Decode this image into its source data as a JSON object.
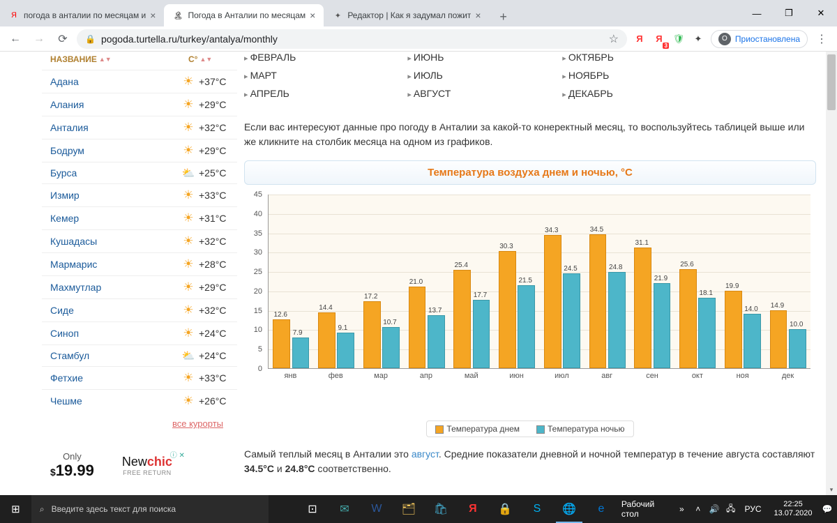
{
  "tabs": [
    {
      "favicon": "Я",
      "favicon_color": "#ff0000",
      "title": "погода в анталии по месяцам и"
    },
    {
      "favicon": "🏝",
      "favicon_color": "#000",
      "title": "Погода в Анталии по месяцам",
      "active": true
    },
    {
      "favicon": "✦",
      "favicon_color": "#555",
      "title": "Редактор | Как я задумал пожит"
    }
  ],
  "toolbar": {
    "url": "pogoda.turtella.ru/turkey/antalya/monthly",
    "paused": "Приостановлена"
  },
  "sidebar": {
    "header": {
      "name": "НАЗВАНИЕ",
      "temp": "C°"
    },
    "cities": [
      {
        "name": "Адана",
        "icon": "sun",
        "temp": "+37°C"
      },
      {
        "name": "Алания",
        "icon": "sun",
        "temp": "+29°C"
      },
      {
        "name": "Анталия",
        "icon": "sun",
        "temp": "+32°C"
      },
      {
        "name": "Бодрум",
        "icon": "sun",
        "temp": "+29°C"
      },
      {
        "name": "Бурса",
        "icon": "cloud",
        "temp": "+25°C"
      },
      {
        "name": "Измир",
        "icon": "sun",
        "temp": "+33°C"
      },
      {
        "name": "Кемер",
        "icon": "sun",
        "temp": "+31°C"
      },
      {
        "name": "Кушадасы",
        "icon": "sun",
        "temp": "+32°C"
      },
      {
        "name": "Мармарис",
        "icon": "sun",
        "temp": "+28°C"
      },
      {
        "name": "Махмутлар",
        "icon": "sun",
        "temp": "+29°C"
      },
      {
        "name": "Сиде",
        "icon": "sun",
        "temp": "+32°C"
      },
      {
        "name": "Синоп",
        "icon": "sun",
        "temp": "+24°C"
      },
      {
        "name": "Стамбул",
        "icon": "cloud",
        "temp": "+24°C"
      },
      {
        "name": "Фетхие",
        "icon": "sun",
        "temp": "+33°C"
      },
      {
        "name": "Чешме",
        "icon": "sun",
        "temp": "+26°C"
      }
    ],
    "all": "все курорты"
  },
  "ad": {
    "only": "Only",
    "price": "19.99",
    "logo1": "New",
    "logo2": "chic",
    "sub": "FREE RETURN",
    "close": "ⓘ ✕"
  },
  "months": {
    "col1": [
      "ФЕВРАЛЬ",
      "МАРТ",
      "АПРЕЛЬ"
    ],
    "col2": [
      "ИЮНЬ",
      "ИЮЛЬ",
      "АВГУСТ"
    ],
    "col3": [
      "ОКТЯБРЬ",
      "НОЯБРЬ",
      "ДЕКАБРЬ"
    ]
  },
  "intro": "Если вас интересуют данные про погоду в Анталии за какой-то конеректный месяц, то воспользуйтесь таблицей выше или же кликните на столбик месяца на одном из графиков.",
  "chart": {
    "title": "Температура воздуха днем и ночью, °C",
    "ymax": 45,
    "ystep": 5,
    "yticks": [
      0,
      5,
      10,
      15,
      20,
      25,
      30,
      35,
      40,
      45
    ],
    "months": [
      "янв",
      "фев",
      "мар",
      "апр",
      "май",
      "июн",
      "июл",
      "авг",
      "сен",
      "окт",
      "ноя",
      "дек"
    ],
    "day": [
      12.6,
      14.4,
      17.2,
      21.0,
      25.4,
      30.3,
      34.3,
      34.5,
      31.1,
      25.6,
      19.9,
      14.9
    ],
    "night": [
      7.9,
      9.1,
      10.7,
      13.7,
      17.7,
      21.5,
      24.5,
      24.8,
      21.9,
      18.1,
      14.0,
      10.0
    ],
    "legend_day": "Температура днем",
    "legend_night": "Температура ночью",
    "day_color": "#f5a523",
    "night_color": "#4db6c9",
    "bg": "#fdf9f1"
  },
  "summary": {
    "pre": "Самый теплый месяц в Анталии это ",
    "hl": "август",
    "post": ". Средние показатели дневной и ночной температур в течение августа составляют ",
    "t1": "34.5°C",
    "mid": " и ",
    "t2": "24.8°C",
    "end": " соответственно."
  },
  "taskbar": {
    "search": "Введите здесь текст для поиска",
    "desktop": "Рабочий стол",
    "lang": "РУС",
    "time": "22:25",
    "date": "13.07.2020"
  }
}
